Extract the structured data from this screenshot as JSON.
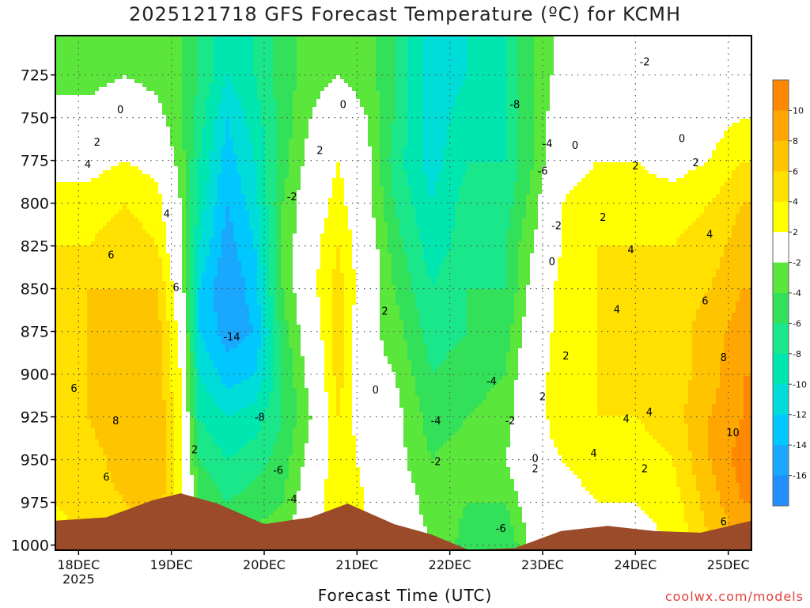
{
  "chart_data": {
    "type": "heatmap",
    "title": "2025121718 GFS Forecast Temperature (ºC) for KCMH",
    "xlabel": "Forecast Time (UTC)",
    "ylabel": "Pressure (hPa)",
    "credit": "coolwx.com/models",
    "x_ticks": [
      "18DEC",
      "19DEC",
      "20DEC",
      "21DEC",
      "22DEC",
      "23DEC",
      "24DEC",
      "25DEC"
    ],
    "x_year": "2025",
    "x_range_days": [
      -0.25,
      7.25
    ],
    "y_ticks": [
      725,
      750,
      775,
      800,
      825,
      850,
      875,
      900,
      925,
      950,
      975,
      1000
    ],
    "ylim": [
      1003,
      702
    ],
    "colorbar": {
      "bins": [
        {
          "lo": -18,
          "hi": -16,
          "color": "#1f8fff"
        },
        {
          "lo": -16,
          "hi": -14,
          "color": "#1aa8ff"
        },
        {
          "lo": -14,
          "hi": -12,
          "color": "#00c8ff"
        },
        {
          "lo": -12,
          "hi": -10,
          "color": "#00dcd8"
        },
        {
          "lo": -10,
          "hi": -8,
          "color": "#00e6b0"
        },
        {
          "lo": -8,
          "hi": -6,
          "color": "#1ae68a"
        },
        {
          "lo": -6,
          "hi": -4,
          "color": "#33e05a"
        },
        {
          "lo": -4,
          "hi": -2,
          "color": "#5ae63a"
        },
        {
          "lo": -2,
          "hi": 2,
          "color": "#ffffff"
        },
        {
          "lo": 2,
          "hi": 4,
          "color": "#ffff00"
        },
        {
          "lo": 4,
          "hi": 6,
          "color": "#ffe000"
        },
        {
          "lo": 6,
          "hi": 8,
          "color": "#ffc400"
        },
        {
          "lo": 8,
          "hi": 10,
          "color": "#ffa600"
        },
        {
          "lo": 10,
          "hi": 12,
          "color": "#ff8800"
        }
      ],
      "labels": [
        "10",
        "8",
        "6",
        "4",
        "2",
        "-2",
        "-4",
        "-6",
        "-8",
        "-10",
        "-12",
        "-14",
        "-16"
      ]
    },
    "temperature_profile_columns": [
      {
        "day": -0.25,
        "temps": [
          -3,
          -1,
          1,
          3,
          4,
          5,
          5,
          6,
          5,
          6,
          4,
          3
        ]
      },
      {
        "day": 0.1,
        "temps": [
          -3,
          -1,
          1,
          3,
          4,
          6,
          6,
          6,
          6,
          5,
          5,
          4
        ]
      },
      {
        "day": 0.5,
        "temps": [
          -2,
          0,
          2,
          4,
          5,
          6,
          7,
          7,
          8,
          7,
          6,
          5
        ]
      },
      {
        "day": 0.85,
        "temps": [
          -3,
          -1,
          1,
          3,
          4,
          6,
          7,
          7,
          8,
          8,
          7,
          6
        ]
      },
      {
        "day": 1.1,
        "temps": [
          -4,
          -4,
          -3,
          -2,
          -1,
          0,
          1,
          2,
          2,
          3,
          3,
          2
        ]
      },
      {
        "day": 1.3,
        "temps": [
          -6,
          -7,
          -8,
          -9,
          -10,
          -12,
          -12,
          -10,
          -8,
          -6,
          -4,
          -3
        ]
      },
      {
        "day": 1.6,
        "temps": [
          -10,
          -12,
          -13,
          -14,
          -15,
          -16,
          -15,
          -13,
          -10,
          -8,
          -6,
          -4
        ]
      },
      {
        "day": 1.9,
        "temps": [
          -8,
          -9,
          -10,
          -11,
          -12,
          -13,
          -14,
          -12,
          -9,
          -7,
          -5,
          -3
        ]
      },
      {
        "day": 2.2,
        "temps": [
          -5,
          -5,
          -5,
          -4,
          -4,
          -4,
          -5,
          -6,
          -6,
          -5,
          -4,
          -3
        ]
      },
      {
        "day": 2.5,
        "temps": [
          -3,
          -2,
          -1,
          0,
          1,
          1,
          0,
          -1,
          -2,
          -1,
          0,
          1
        ]
      },
      {
        "day": 2.8,
        "temps": [
          -2,
          0,
          2,
          3,
          4,
          5,
          5,
          5,
          4,
          4,
          4,
          3
        ]
      },
      {
        "day": 3.1,
        "temps": [
          -3,
          -2,
          -1,
          -1,
          0,
          0,
          -1,
          -1,
          0,
          1,
          2,
          1
        ]
      },
      {
        "day": 3.4,
        "temps": [
          -6,
          -6,
          -7,
          -6,
          -5,
          -4,
          -3,
          -2,
          -1,
          -1,
          0,
          0
        ]
      },
      {
        "day": 3.8,
        "temps": [
          -11,
          -11,
          -11,
          -10,
          -9,
          -8,
          -7,
          -6,
          -5,
          -4,
          -3,
          -2
        ]
      },
      {
        "day": 4.2,
        "temps": [
          -10,
          -9,
          -8,
          -7,
          -7,
          -6,
          -6,
          -5,
          -4,
          -3,
          -4,
          -5
        ]
      },
      {
        "day": 4.6,
        "temps": [
          -8,
          -8,
          -8,
          -7,
          -6,
          -6,
          -5,
          -4,
          -3,
          -2,
          -4,
          -6
        ]
      },
      {
        "day": 4.9,
        "temps": [
          -4,
          -4,
          -4,
          -3,
          -2,
          -1,
          0,
          1,
          1,
          1,
          0,
          -1
        ]
      },
      {
        "day": 5.2,
        "temps": [
          -1,
          0,
          1,
          2,
          2,
          3,
          3,
          3,
          3,
          2,
          1,
          0
        ]
      },
      {
        "day": 5.6,
        "temps": [
          -1,
          1,
          2,
          3,
          4,
          4,
          4,
          4,
          4,
          3,
          2,
          1
        ]
      },
      {
        "day": 6.0,
        "temps": [
          -2,
          0,
          2,
          3,
          4,
          4,
          5,
          5,
          4,
          3,
          2,
          1
        ]
      },
      {
        "day": 6.4,
        "temps": [
          -2,
          0,
          1,
          3,
          4,
          5,
          5,
          5,
          5,
          4,
          3,
          2
        ]
      },
      {
        "day": 6.8,
        "temps": [
          -1,
          1,
          2,
          4,
          5,
          6,
          7,
          7,
          8,
          8,
          7,
          6
        ]
      },
      {
        "day": 7.15,
        "temps": [
          0,
          2,
          4,
          6,
          7,
          8,
          9,
          10,
          10,
          11,
          10,
          8
        ]
      }
    ],
    "terrain_surface_pressure": [
      {
        "day": -0.25,
        "p": 986
      },
      {
        "day": 0.3,
        "p": 984
      },
      {
        "day": 0.8,
        "p": 974
      },
      {
        "day": 1.1,
        "p": 970
      },
      {
        "day": 1.5,
        "p": 976
      },
      {
        "day": 2.0,
        "p": 988
      },
      {
        "day": 2.5,
        "p": 984
      },
      {
        "day": 2.9,
        "p": 976
      },
      {
        "day": 3.4,
        "p": 988
      },
      {
        "day": 3.8,
        "p": 994
      },
      {
        "day": 4.2,
        "p": 1003
      },
      {
        "day": 4.7,
        "p": 1002
      },
      {
        "day": 5.2,
        "p": 992
      },
      {
        "day": 5.7,
        "p": 989
      },
      {
        "day": 6.2,
        "p": 992
      },
      {
        "day": 6.7,
        "p": 993
      },
      {
        "day": 7.25,
        "p": 986
      }
    ],
    "contour_labels": [
      {
        "text": "0",
        "day": 0.45,
        "p": 745
      },
      {
        "text": "2",
        "day": 0.2,
        "p": 764
      },
      {
        "text": "4",
        "day": 0.1,
        "p": 777
      },
      {
        "text": "4",
        "day": 0.95,
        "p": 806
      },
      {
        "text": "6",
        "day": 0.35,
        "p": 830
      },
      {
        "text": "6",
        "day": 1.05,
        "p": 849
      },
      {
        "text": "6",
        "day": -0.05,
        "p": 908
      },
      {
        "text": "8",
        "day": 0.4,
        "p": 927
      },
      {
        "text": "6",
        "day": 0.3,
        "p": 960
      },
      {
        "text": "2",
        "day": 1.25,
        "p": 944
      },
      {
        "text": "-14",
        "day": 1.65,
        "p": 878
      },
      {
        "text": "-8",
        "day": 1.95,
        "p": 925
      },
      {
        "text": "-6",
        "day": 2.15,
        "p": 956
      },
      {
        "text": "-4",
        "day": 2.3,
        "p": 973
      },
      {
        "text": "-2",
        "day": 2.3,
        "p": 796
      },
      {
        "text": "2",
        "day": 2.6,
        "p": 769
      },
      {
        "text": "0",
        "day": 2.85,
        "p": 742
      },
      {
        "text": "2",
        "day": 3.3,
        "p": 863
      },
      {
        "text": "0",
        "day": 3.2,
        "p": 909
      },
      {
        "text": "-8",
        "day": 4.7,
        "p": 742
      },
      {
        "text": "-4",
        "day": 4.45,
        "p": 904
      },
      {
        "text": "-4",
        "day": 3.85,
        "p": 927
      },
      {
        "text": "-2",
        "day": 4.65,
        "p": 927
      },
      {
        "text": "-2",
        "day": 3.85,
        "p": 951
      },
      {
        "text": "-6",
        "day": 4.55,
        "p": 990
      },
      {
        "text": "-4",
        "day": 5.05,
        "p": 765
      },
      {
        "text": "-6",
        "day": 5.0,
        "p": 781
      },
      {
        "text": "0",
        "day": 5.35,
        "p": 766
      },
      {
        "text": "-2",
        "day": 5.15,
        "p": 813
      },
      {
        "text": "0",
        "day": 5.1,
        "p": 834
      },
      {
        "text": "2",
        "day": 5.25,
        "p": 889
      },
      {
        "text": "2",
        "day": 5.0,
        "p": 913
      },
      {
        "text": "0",
        "day": 4.92,
        "p": 949
      },
      {
        "text": "2",
        "day": 4.92,
        "p": 955
      },
      {
        "text": "-2",
        "day": 6.1,
        "p": 717
      },
      {
        "text": "0",
        "day": 6.5,
        "p": 762
      },
      {
        "text": "2",
        "day": 6.0,
        "p": 778
      },
      {
        "text": "2",
        "day": 5.65,
        "p": 808
      },
      {
        "text": "2",
        "day": 6.65,
        "p": 776
      },
      {
        "text": "4",
        "day": 5.95,
        "p": 827
      },
      {
        "text": "4",
        "day": 6.8,
        "p": 818
      },
      {
        "text": "4",
        "day": 5.8,
        "p": 862
      },
      {
        "text": "6",
        "day": 6.75,
        "p": 857
      },
      {
        "text": "8",
        "day": 6.95,
        "p": 890
      },
      {
        "text": "4",
        "day": 5.9,
        "p": 926
      },
      {
        "text": "4",
        "day": 6.15,
        "p": 922
      },
      {
        "text": "4",
        "day": 5.55,
        "p": 946
      },
      {
        "text": "2",
        "day": 6.1,
        "p": 955
      },
      {
        "text": "10",
        "day": 7.05,
        "p": 934
      },
      {
        "text": "6",
        "day": 6.95,
        "p": 986
      }
    ]
  }
}
